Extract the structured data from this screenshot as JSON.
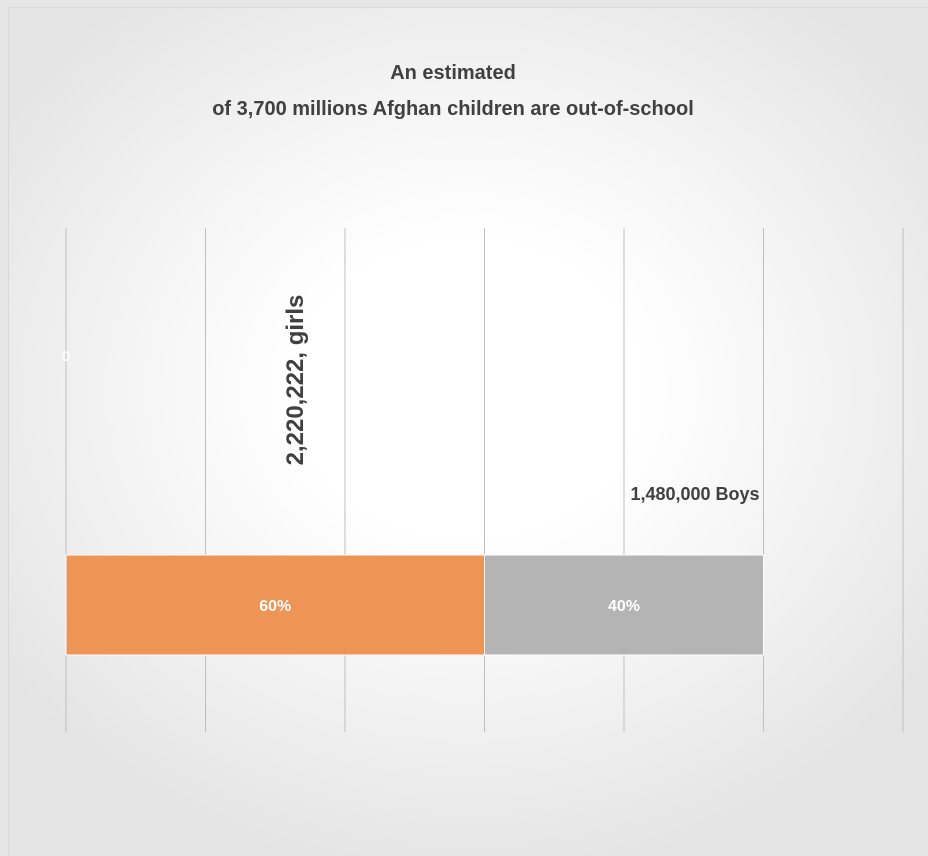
{
  "chart_data": {
    "type": "bar",
    "orientation": "horizontal",
    "stacked": true,
    "stack_mode": "percent",
    "title_lines": [
      "An estimated",
      "of 3,700 millions Afghan children are  out-of-school"
    ],
    "categories": [
      ""
    ],
    "series": [
      {
        "values": [
          60
        ],
        "color": "#ED914F",
        "data_label": "60%",
        "annotation": "2,220,222, girls",
        "annotation_orientation": "vertical"
      },
      {
        "values": [
          40
        ],
        "color": "#B2B2B2",
        "data_label": "40%",
        "annotation": "1,480,000 Boys",
        "annotation_orientation": "horizontal"
      }
    ],
    "xlim": [
      0,
      120
    ],
    "x_gridline_step": 20,
    "grid": true,
    "legend": "none",
    "stray_label": "0",
    "colors": {
      "title": "#404040",
      "gridline": "#bfbfbf",
      "data_label": "#ffffff",
      "annotation": "#404040"
    }
  }
}
